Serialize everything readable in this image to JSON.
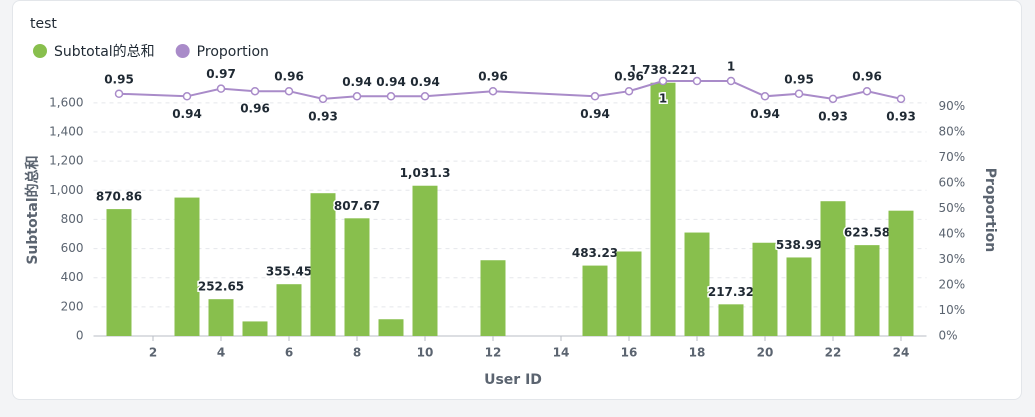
{
  "chart_data": {
    "type": "bar-line",
    "title": "test",
    "xlabel": "User ID",
    "ylabel": "Subtotal的总和",
    "y2label": "Proportion",
    "x": [
      1,
      3,
      4,
      5,
      6,
      7,
      8,
      9,
      10,
      12,
      15,
      16,
      17,
      18,
      19,
      20,
      21,
      22,
      23,
      24
    ],
    "xlim": [
      0.25,
      24.75
    ],
    "xticks": [
      2,
      4,
      6,
      8,
      10,
      12,
      14,
      16,
      18,
      20,
      22,
      24
    ],
    "ylim": [
      0,
      1750
    ],
    "yticks": [
      0,
      200,
      400,
      600,
      800,
      {
        "value": 1000,
        "label": "1,000"
      },
      {
        "value": 1200,
        "label": "1,200"
      },
      {
        "value": 1400,
        "label": "1,400"
      },
      {
        "value": 1600,
        "label": "1,600"
      }
    ],
    "y2lim": [
      0,
      100
    ],
    "y2ticks": [
      {
        "value": 0,
        "label": "0%"
      },
      {
        "value": 10,
        "label": "10%"
      },
      {
        "value": 20,
        "label": "20%"
      },
      {
        "value": 30,
        "label": "30%"
      },
      {
        "value": 40,
        "label": "40%"
      },
      {
        "value": 50,
        "label": "50%"
      },
      {
        "value": 60,
        "label": "60%"
      },
      {
        "value": 70,
        "label": "70%"
      },
      {
        "value": 80,
        "label": "80%"
      },
      {
        "value": 90,
        "label": "90%"
      }
    ],
    "grid": true,
    "series": [
      {
        "name": "Subtotal的总和",
        "type": "bar",
        "color": "#88bf4d",
        "axis": "y",
        "values": [
          870.86,
          950,
          252.65,
          100,
          355.45,
          980,
          807.67,
          115,
          1031.3,
          520,
          483.23,
          580,
          1738.221,
          710,
          217.32,
          640,
          538.99,
          925,
          623.58,
          860
        ],
        "value_labels": [
          "870.86",
          null,
          "252.65",
          null,
          "355.45",
          null,
          "807.67",
          null,
          "1,031.3",
          null,
          "483.23",
          null,
          "1,738.221",
          null,
          "217.32",
          null,
          "538.99",
          null,
          "623.58",
          null
        ]
      },
      {
        "name": "Proportion",
        "type": "line",
        "color": "#a98bc9",
        "axis": "y2",
        "values": [
          95,
          94,
          97,
          96,
          96,
          93,
          94,
          94,
          94,
          96,
          94,
          96,
          100,
          100,
          100,
          94,
          95,
          93,
          96,
          93
        ],
        "value_labels": [
          "0.95",
          "0.94",
          "0.97",
          "0.96",
          "0.96",
          "0.93",
          "0.94",
          "0.94",
          "0.94",
          "0.96",
          "0.94",
          "0.96",
          "1",
          null,
          "1",
          "0.94",
          "0.95",
          "0.93",
          "0.96",
          "0.93"
        ]
      }
    ]
  }
}
